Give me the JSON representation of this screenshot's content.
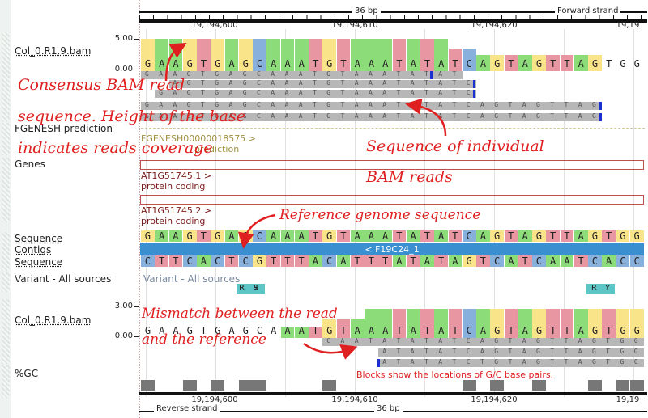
{
  "ruler": {
    "bp_label": "36 bp",
    "forward_strand": "Forward strand",
    "reverse_strand": "Reverse strand",
    "coords": [
      "19,194,600",
      "19,194,610",
      "19,194,620",
      "19,19"
    ]
  },
  "tracks": {
    "bam_top": {
      "label": "Col_0.R1.9.bam",
      "scale_max": "5.00",
      "scale_min": "0.00"
    },
    "fgenesh": {
      "label": "FGENESH prediction",
      "item": "FGENESH00000018575 >",
      "item_sub": "prediction"
    },
    "genes": {
      "label": "Genes",
      "gene1": "AT1G51745.1 >",
      "gene1_sub": "protein coding",
      "gene2": "AT1G51745.2 >",
      "gene2_sub": "protein coding"
    },
    "sequence": {
      "label": "Sequence"
    },
    "contigs": {
      "label": "Contigs",
      "contig": "< F19C24_1"
    },
    "sequence_rev": {
      "label": "Sequence"
    },
    "variants": {
      "label": "Variant - All sources",
      "inner": "Variant - All sources",
      "codes": [
        "R",
        "S",
        "R",
        "Y"
      ]
    },
    "bam_bottom": {
      "label": "Col_0.R1.9.bam",
      "scale_max": "3.00",
      "scale_min": "0.00"
    },
    "gc": {
      "label": "%GC",
      "note": "Blocks show the locations of G/C base pairs."
    }
  },
  "sequences": {
    "forward": "GAAGTGAGCAAATGTAAATATATCAGTAGTTAGTGG",
    "reverse": "CTTCACTCGTTTACATTTATATAGTCATCAATCACC",
    "consensus_top": "GAAGTGAGCAAATGTAAATATATCAGTAGTTAGTGG",
    "consensus_bottom": "GAAGTGAGCAAATGTAAATATATCAGTAGTTAGTGG"
  },
  "reads_top": [
    "GAAGTGAGCAAATGTAAATATAT",
    "AGTGAGCAAATGTAAATATATC",
    "GAGTGAGCAAATGTAAATATATC",
    "GAAGTGAGCAAATGTAAATATATCAGTAGTTAG",
    "GAAGTGAGCAAATGTAAATATATCAGTAGTTAG"
  ],
  "reads_bottom": [
    "CAATATATATCAGTAGTTAGTGG",
    "ATATATCAGTAGTTAGTGG",
    "ATATATCTGTAGTTAGTGC"
  ],
  "annotations": {
    "consensus_1": "Consensus BAM read",
    "consensus_2": "sequence. Height of the base",
    "consensus_3": "indicates reads coverage",
    "individual_1": "Sequence of individual",
    "individual_2": "BAM reads",
    "reference": "Reference genome sequence",
    "mismatch_1": "Mismatch between the read",
    "mismatch_2": "and the reference"
  },
  "colors": {
    "A": "#8ddc7a",
    "C": "#88b0dc",
    "G": "#fae48a",
    "T": "#e896a2",
    "contig": "#3a8fd0",
    "annotation": "#e02020"
  }
}
